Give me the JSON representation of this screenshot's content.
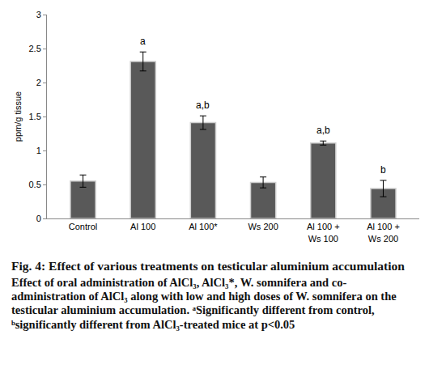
{
  "chart_data": {
    "type": "bar",
    "title": "Fig. 4: Effect of various treatments on testicular aluminium accumulation",
    "subtitle": "Effect of oral administration of AlCl₃, AlCl₃*, W. somnifera and co-administration of AlCl₃ along with low and high doses of W. somnifera on the testicular aluminium accumulation. ᵃSignificantly different from control, ᵇsignificantly different from AlCl₃-treated mice at p<0.05",
    "y_label": "ppm/g tissue",
    "categories": [
      "Control",
      "Al 100",
      "Al 100*",
      "Ws 200",
      "Al 100 + Ws 100",
      "Al 100 + Ws 200"
    ],
    "values": [
      0.55,
      2.31,
      1.41,
      0.53,
      1.11,
      0.44
    ],
    "errors": [
      0.09,
      0.14,
      0.1,
      0.08,
      0.03,
      0.12
    ],
    "annotations": [
      null,
      "a",
      "a,b",
      null,
      "a,b",
      "b"
    ],
    "color": "#595959",
    "ylim": [
      0,
      3
    ],
    "yticks": [
      0,
      0.5,
      1,
      1.5,
      2,
      2.5,
      3
    ],
    "grid": false
  }
}
